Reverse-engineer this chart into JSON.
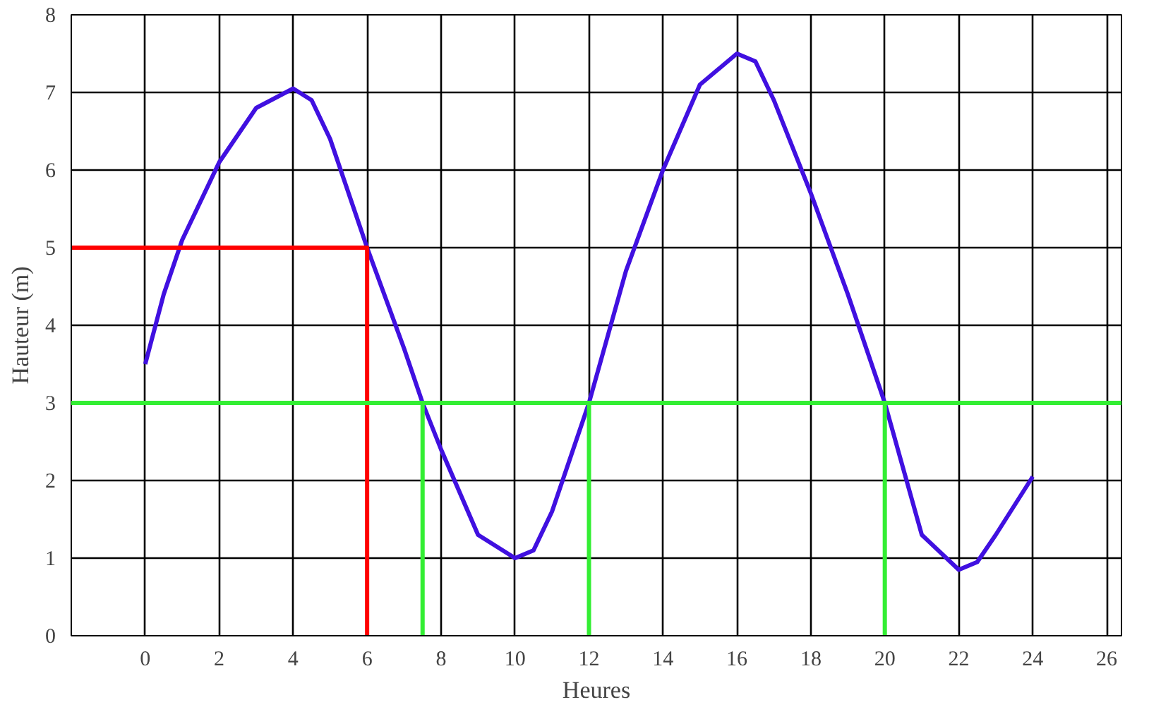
{
  "chart_data": {
    "type": "line",
    "xlabel": "Heures",
    "ylabel": "Hauteur (m)",
    "xlim": [
      -2,
      26.4
    ],
    "ylim": [
      0,
      8
    ],
    "xticks": [
      0,
      2,
      4,
      6,
      8,
      10,
      12,
      14,
      16,
      18,
      20,
      22,
      24,
      26
    ],
    "yticks": [
      0,
      1,
      2,
      3,
      4,
      5,
      6,
      7,
      8
    ],
    "grid": true,
    "marker": "none",
    "line_style": "solid",
    "ref_lines": [
      {
        "axis": "y",
        "value": 3,
        "color": "#33ee33"
      }
    ],
    "series": [
      {
        "color": "#4010e0",
        "x": [
          0,
          0.5,
          1,
          2,
          3,
          4,
          4.5,
          5,
          6,
          7,
          7.5,
          8,
          9,
          10,
          10.5,
          11,
          12,
          13,
          14,
          15,
          16,
          16.5,
          17,
          18,
          19,
          20,
          21,
          22,
          22.5,
          23,
          24
        ],
        "values": [
          3.5,
          4.4,
          5.1,
          6.1,
          6.8,
          7.05,
          6.9,
          6.4,
          5.0,
          3.7,
          3.0,
          2.4,
          1.3,
          1.0,
          1.1,
          1.6,
          3.0,
          4.7,
          6.0,
          7.1,
          7.5,
          7.4,
          6.9,
          5.7,
          4.4,
          3.0,
          1.3,
          0.85,
          0.95,
          1.3,
          2.05
        ]
      },
      {
        "color": "#ff0000",
        "x": [
          -2,
          6,
          6
        ],
        "values": [
          5,
          5,
          0
        ]
      },
      {
        "color": "#33ee33",
        "x": [
          7.5,
          7.5
        ],
        "values": [
          3,
          0
        ]
      },
      {
        "color": "#33ee33",
        "x": [
          12,
          12
        ],
        "values": [
          3,
          0
        ]
      },
      {
        "color": "#33ee33",
        "x": [
          20,
          20
        ],
        "values": [
          3,
          0
        ]
      }
    ]
  }
}
